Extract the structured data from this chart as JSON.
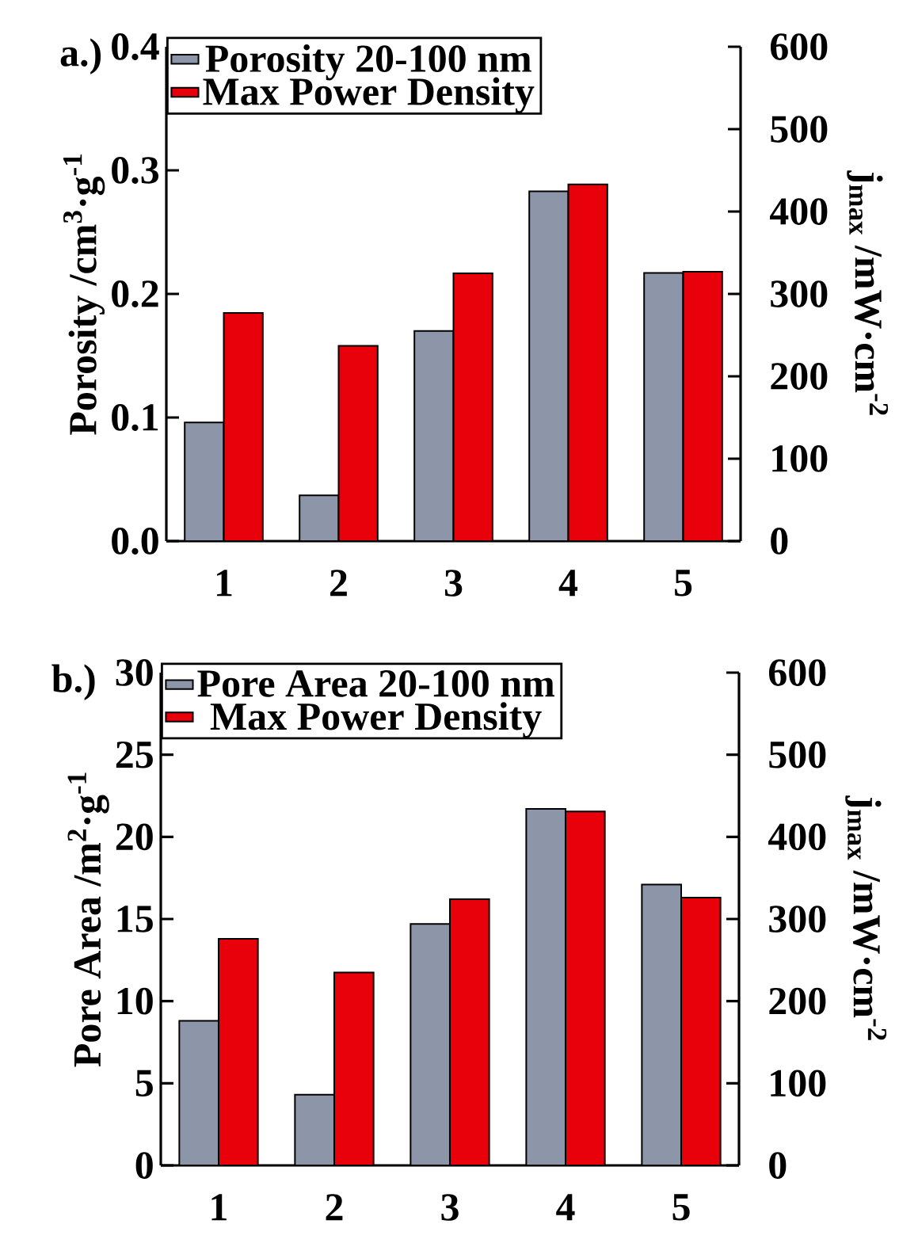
{
  "chart_data": [
    {
      "type": "bar",
      "categories": [
        "1",
        "2",
        "3",
        "4",
        "5"
      ],
      "series": [
        {
          "name": "Porosity 20-100 nm",
          "color": "#8c96a8",
          "values": [
            0.096,
            0.037,
            0.17,
            0.283,
            0.217
          ]
        },
        {
          "name": "Max Power Density",
          "color": "#e8000b",
          "values": [
            277,
            237,
            325,
            433,
            327
          ],
          "axis": "y2"
        }
      ],
      "ylabel": "Porosity /cm$^{3}$·g$^{-1}$",
      "y2label": "j$_{max}$ /mW·cm$^{-2}$",
      "ylim": [
        0,
        0.4
      ],
      "yticks": [
        {
          "value": 0,
          "label": "0.0"
        },
        0.1,
        0.2,
        0.3,
        0.4
      ],
      "y2lim": [
        0,
        600
      ],
      "y2ticks": [
        0,
        100,
        200,
        300,
        400,
        500,
        600
      ],
      "legend": "top left",
      "annotations": [
        "a.)"
      ]
    },
    {
      "type": "bar",
      "categories": [
        "1",
        "2",
        "3",
        "4",
        "5"
      ],
      "series": [
        {
          "name": "Pore Area 20-100 nm",
          "color": "#8c96a8",
          "values": [
            8.8,
            4.3,
            14.7,
            21.7,
            17.1
          ]
        },
        {
          "name": "Max Power Density",
          "color": "#e8000b",
          "values": [
            276,
            235,
            324,
            431,
            326
          ],
          "axis": "y2"
        }
      ],
      "ylabel": "Pore Area /m$^{2}$·g$^{-1}$",
      "y2label": "j$_{max}$ /mW·cm$^{-2}$",
      "ylim": [
        0,
        30
      ],
      "yticks": [
        0,
        5,
        10,
        15,
        20,
        25,
        30
      ],
      "y2lim": [
        0,
        600
      ],
      "y2ticks": [
        0,
        100,
        200,
        300,
        400,
        500,
        600
      ],
      "legend": "top left",
      "annotations": [
        "b.)"
      ]
    }
  ]
}
